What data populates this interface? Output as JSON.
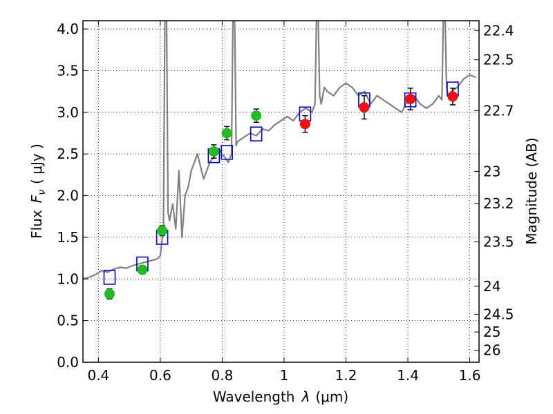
{
  "chart_data": {
    "type": "scatter",
    "title": "",
    "xlabel": "Wavelength",
    "xlabel_lambda": "λ",
    "xlabel_units": "(μm)",
    "ylabel": "Flux",
    "ylabel_symbol": "F",
    "ylabel_subscript": "ν",
    "ylabel_units": "( μJy )",
    "ylabel_right": "Magnitude (AB)",
    "xlim": [
      0.35,
      1.63
    ],
    "ylim": [
      0.0,
      4.1
    ],
    "grid": true,
    "x_ticks": [
      0.4,
      0.6,
      0.8,
      1.0,
      1.2,
      1.4,
      1.6
    ],
    "x_tick_labels": [
      "0.4",
      "0.6",
      "0.8",
      "1",
      "1.2",
      "1.4",
      "1.6"
    ],
    "y_ticks": [
      0.0,
      0.5,
      1.0,
      1.5,
      2.0,
      2.5,
      3.0,
      3.5,
      4.0
    ],
    "y_tick_labels": [
      "0.0",
      "0.5",
      "1.0",
      "1.5",
      "2.0",
      "2.5",
      "3.0",
      "3.5",
      "4.0"
    ],
    "right_tick_labels": [
      "22.4",
      "22.5",
      "22.7",
      "23",
      "23.2",
      "23.5",
      "24",
      "24.5",
      "25",
      "26"
    ],
    "colors": {
      "model": "#808080",
      "green": "#22bb22",
      "red": "#ee1111",
      "box": "#0000cc"
    },
    "series": [
      {
        "name": "model spectrum",
        "style": "line",
        "x": [
          0.35,
          0.37,
          0.39,
          0.41,
          0.43,
          0.45,
          0.47,
          0.49,
          0.51,
          0.53,
          0.55,
          0.57,
          0.59,
          0.6,
          0.61,
          0.615,
          0.62,
          0.625,
          0.63,
          0.64,
          0.65,
          0.66,
          0.67,
          0.68,
          0.69,
          0.7,
          0.72,
          0.74,
          0.75,
          0.76,
          0.77,
          0.78,
          0.79,
          0.8,
          0.81,
          0.82,
          0.83,
          0.835,
          0.84,
          0.845,
          0.85,
          0.87,
          0.89,
          0.91,
          0.93,
          0.95,
          0.97,
          0.99,
          1.01,
          1.03,
          1.05,
          1.07,
          1.09,
          1.1,
          1.105,
          1.11,
          1.115,
          1.12,
          1.13,
          1.14,
          1.16,
          1.18,
          1.2,
          1.22,
          1.24,
          1.26,
          1.28,
          1.3,
          1.32,
          1.34,
          1.36,
          1.38,
          1.4,
          1.42,
          1.44,
          1.46,
          1.48,
          1.5,
          1.51,
          1.515,
          1.52,
          1.525,
          1.53,
          1.54,
          1.56,
          1.58,
          1.6,
          1.62
        ],
        "y": [
          1.0,
          1.02,
          1.05,
          1.1,
          1.08,
          1.12,
          1.14,
          1.13,
          1.16,
          1.18,
          1.2,
          1.22,
          1.24,
          1.28,
          1.6,
          4.2,
          4.2,
          1.8,
          1.7,
          1.9,
          1.6,
          2.3,
          1.5,
          2.0,
          2.1,
          2.3,
          2.5,
          2.2,
          2.3,
          2.4,
          2.45,
          2.5,
          2.55,
          2.5,
          2.45,
          2.4,
          2.5,
          4.2,
          4.2,
          2.6,
          2.65,
          2.7,
          2.75,
          2.72,
          2.8,
          2.78,
          2.85,
          2.9,
          2.95,
          2.9,
          3.0,
          3.05,
          3.0,
          3.1,
          4.2,
          4.2,
          3.2,
          3.1,
          3.3,
          3.25,
          3.2,
          3.3,
          3.35,
          3.3,
          3.2,
          3.25,
          3.1,
          3.2,
          3.15,
          3.1,
          3.05,
          3.0,
          3.15,
          3.2,
          3.1,
          3.05,
          3.1,
          3.2,
          3.15,
          4.2,
          4.2,
          3.3,
          3.2,
          3.25,
          3.3,
          3.4,
          3.45,
          3.42
        ]
      },
      {
        "name": "green measurements",
        "style": "circle",
        "x": [
          0.436,
          0.542,
          0.606,
          0.773,
          0.815,
          0.91
        ],
        "y": [
          0.82,
          1.11,
          1.58,
          2.53,
          2.75,
          2.96
        ],
        "err": [
          0.06,
          0.05,
          0.06,
          0.08,
          0.08,
          0.08
        ]
      },
      {
        "name": "red measurements",
        "style": "circle",
        "x": [
          1.068,
          1.259,
          1.408,
          1.545
        ],
        "y": [
          2.86,
          3.06,
          3.16,
          3.19
        ],
        "err": [
          0.1,
          0.14,
          0.13,
          0.1
        ]
      },
      {
        "name": "model magnitudes",
        "style": "square",
        "x": [
          0.436,
          0.542,
          0.606,
          0.773,
          0.815,
          0.91,
          1.068,
          1.259,
          1.408,
          1.545
        ],
        "y": [
          1.02,
          1.18,
          1.5,
          2.48,
          2.52,
          2.74,
          2.98,
          3.15,
          3.15,
          3.28
        ]
      }
    ]
  }
}
